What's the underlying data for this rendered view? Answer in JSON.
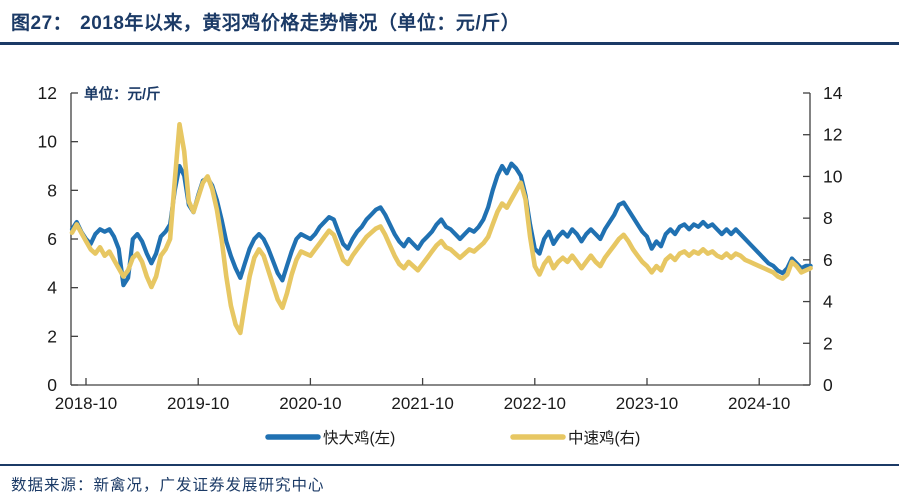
{
  "header": {
    "figure_label": "图27：",
    "title": "2018年以来，黄羽鸡价格走势情况（单位：元/斤）",
    "rule_color": "#1b3a66"
  },
  "footer": {
    "source_text": "数据来源：新禽况，广发证券发展研究中心"
  },
  "chart_data": {
    "type": "line",
    "unit_label": "单位：元/斤",
    "grid": false,
    "legend_position": "bottom",
    "x_tick_labels": [
      "2018-10",
      "2019-10",
      "2020-10",
      "2021-10",
      "2022-10",
      "2023-10",
      "2024-10"
    ],
    "x_tick_months": [
      0,
      12,
      24,
      36,
      48,
      60,
      72
    ],
    "left_axis": {
      "min": 0,
      "max": 12,
      "ticks": [
        0,
        2,
        4,
        6,
        8,
        10,
        12
      ]
    },
    "right_axis": {
      "min": 0,
      "max": 14,
      "ticks": [
        0,
        2,
        4,
        6,
        8,
        10,
        12,
        14
      ]
    },
    "axis_color": "#404040",
    "text_color": "#1a1a1a",
    "series": [
      {
        "name": "快大鸡(左)",
        "axis": "left",
        "color": "#2071b2",
        "width": 4.2,
        "start_month": -1.5,
        "step_months": 0.5,
        "values": [
          6.4,
          6.7,
          6.3,
          6.0,
          5.8,
          6.2,
          6.4,
          6.3,
          6.4,
          6.1,
          5.6,
          4.1,
          4.4,
          6.0,
          6.2,
          5.9,
          5.4,
          5.0,
          5.4,
          6.1,
          6.3,
          6.6,
          8.0,
          9.0,
          8.6,
          7.4,
          7.1,
          7.8,
          8.4,
          8.5,
          8.2,
          7.6,
          6.8,
          5.9,
          5.3,
          4.8,
          4.4,
          5.0,
          5.6,
          6.0,
          6.2,
          6.0,
          5.6,
          5.1,
          4.6,
          4.3,
          4.9,
          5.5,
          6.0,
          6.2,
          6.1,
          6.0,
          6.2,
          6.5,
          6.7,
          6.9,
          6.8,
          6.3,
          5.8,
          5.6,
          6.0,
          6.3,
          6.5,
          6.8,
          7.0,
          7.2,
          7.3,
          7.0,
          6.6,
          6.2,
          5.9,
          5.7,
          6.0,
          5.8,
          5.6,
          5.9,
          6.1,
          6.3,
          6.6,
          6.8,
          6.5,
          6.4,
          6.2,
          6.0,
          6.2,
          6.4,
          6.3,
          6.5,
          6.8,
          7.3,
          8.0,
          8.6,
          9.0,
          8.7,
          9.1,
          8.9,
          8.6,
          7.8,
          6.6,
          5.6,
          5.4,
          6.0,
          6.3,
          5.8,
          6.1,
          6.3,
          6.1,
          6.4,
          6.2,
          5.9,
          6.2,
          6.4,
          6.2,
          6.0,
          6.4,
          6.7,
          7.0,
          7.4,
          7.5,
          7.2,
          6.9,
          6.6,
          6.3,
          6.1,
          5.6,
          5.9,
          5.7,
          6.2,
          6.4,
          6.2,
          6.5,
          6.6,
          6.4,
          6.6,
          6.5,
          6.7,
          6.5,
          6.6,
          6.4,
          6.2,
          6.4,
          6.2,
          6.4,
          6.2,
          6.0,
          5.8,
          5.6,
          5.4,
          5.2,
          5.0,
          4.9,
          4.7,
          4.6,
          4.8,
          5.2,
          5.0,
          4.8,
          4.9,
          4.9
        ]
      },
      {
        "name": "中速鸡(右)",
        "axis": "right",
        "color": "#e7c763",
        "width": 4.6,
        "start_month": -1.5,
        "step_months": 0.5,
        "values": [
          7.3,
          7.7,
          7.3,
          6.9,
          6.5,
          6.3,
          6.6,
          6.2,
          6.4,
          6.0,
          5.6,
          5.2,
          5.5,
          6.1,
          6.3,
          5.9,
          5.2,
          4.7,
          5.2,
          6.2,
          6.5,
          7.0,
          9.8,
          12.5,
          11.2,
          8.8,
          8.3,
          9.0,
          9.7,
          10.0,
          9.4,
          8.4,
          7.0,
          5.2,
          3.8,
          2.9,
          2.5,
          3.9,
          5.2,
          6.1,
          6.5,
          6.2,
          5.5,
          4.8,
          4.1,
          3.7,
          4.4,
          5.3,
          6.0,
          6.4,
          6.3,
          6.2,
          6.5,
          6.8,
          7.1,
          7.4,
          7.2,
          6.6,
          6.0,
          5.8,
          6.2,
          6.5,
          6.8,
          7.1,
          7.3,
          7.5,
          7.6,
          7.2,
          6.7,
          6.2,
          5.8,
          5.6,
          5.9,
          5.7,
          5.5,
          5.8,
          6.1,
          6.4,
          6.7,
          6.9,
          6.6,
          6.5,
          6.3,
          6.1,
          6.3,
          6.5,
          6.4,
          6.6,
          6.8,
          7.1,
          7.7,
          8.3,
          8.7,
          8.5,
          8.9,
          9.3,
          9.7,
          8.9,
          7.1,
          5.7,
          5.3,
          5.8,
          6.1,
          5.6,
          5.9,
          6.1,
          5.9,
          6.2,
          5.9,
          5.6,
          5.9,
          6.2,
          5.9,
          5.7,
          6.1,
          6.4,
          6.7,
          7.0,
          7.2,
          6.9,
          6.5,
          6.2,
          5.9,
          5.7,
          5.4,
          5.7,
          5.5,
          6.0,
          6.2,
          6.0,
          6.3,
          6.4,
          6.2,
          6.4,
          6.3,
          6.5,
          6.3,
          6.4,
          6.2,
          6.1,
          6.3,
          6.1,
          6.3,
          6.2,
          6.0,
          5.9,
          5.8,
          5.7,
          5.6,
          5.5,
          5.4,
          5.2,
          5.1,
          5.3,
          5.9,
          5.7,
          5.4,
          5.5,
          5.6
        ]
      }
    ],
    "legend": [
      {
        "label": "快大鸡(左)",
        "color": "#2071b2"
      },
      {
        "label": "中速鸡(右)",
        "color": "#e7c763"
      }
    ]
  }
}
